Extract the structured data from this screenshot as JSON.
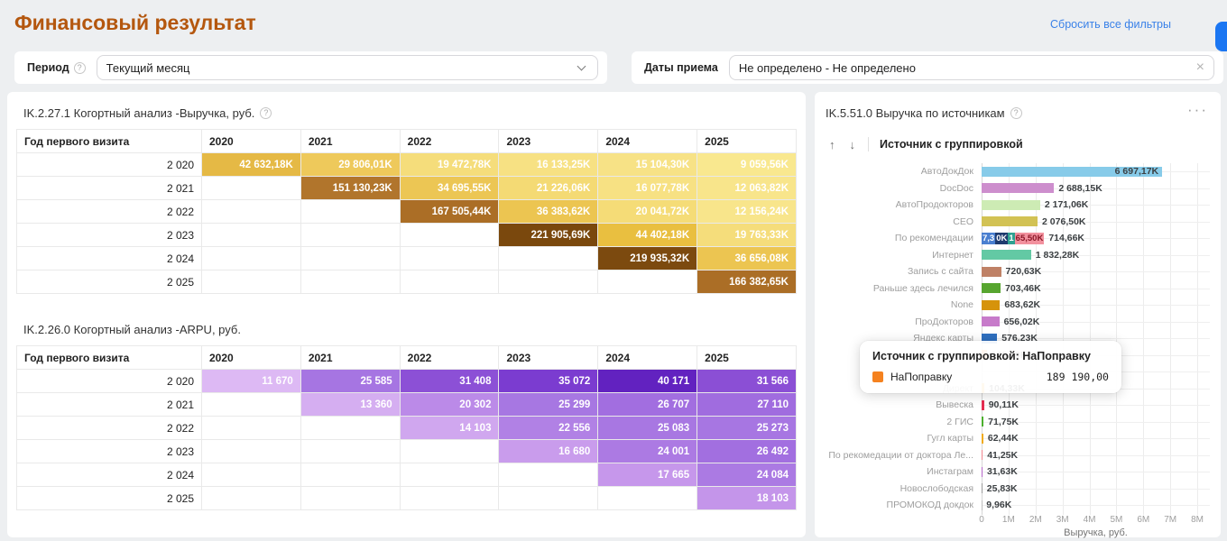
{
  "page": {
    "title": "Финансовый результат",
    "reset_filters": "Сбросить все фильтры"
  },
  "icons": {
    "help": "?",
    "clear": "×",
    "sort_asc": "↑",
    "sort_desc": "↓",
    "menu": "···"
  },
  "filters": {
    "period": {
      "label": "Период",
      "value": "Текущий месяц"
    },
    "dates": {
      "label": "Даты приема",
      "value": "Не определено - Не определено"
    }
  },
  "revenue_cohort": {
    "title": "IK.2.27.1 Когортный анализ -Выручка, руб.",
    "columns": [
      "Год первого визита",
      "2020",
      "2021",
      "2022",
      "2023",
      "2024",
      "2025"
    ],
    "rows": [
      {
        "label": "2 020",
        "cells": [
          {
            "v": "42 632,18K",
            "bg": "#e5b945"
          },
          {
            "v": "29 806,01K",
            "bg": "#eec95b"
          },
          {
            "v": "19 472,78K",
            "bg": "#f5dd7b"
          },
          {
            "v": "16 133,25K",
            "bg": "#f7e183"
          },
          {
            "v": "15 104,30K",
            "bg": "#f7e286"
          },
          {
            "v": "9 059,56K",
            "bg": "#f9e88f"
          }
        ]
      },
      {
        "label": "2 021",
        "cells": [
          null,
          {
            "v": "151 130,23K",
            "bg": "#b1752c"
          },
          {
            "v": "34 695,55K",
            "bg": "#ecc654"
          },
          {
            "v": "21 226,06K",
            "bg": "#f4da74"
          },
          {
            "v": "16 077,78K",
            "bg": "#f7e183"
          },
          {
            "v": "12 063,82K",
            "bg": "#f8e58b"
          }
        ]
      },
      {
        "label": "2 022",
        "cells": [
          null,
          null,
          {
            "v": "167 505,44K",
            "bg": "#ab6e26"
          },
          {
            "v": "36 383,62K",
            "bg": "#ecc551"
          },
          {
            "v": "20 041,72K",
            "bg": "#f5dc77"
          },
          {
            "v": "12 156,24K",
            "bg": "#f8e58b"
          }
        ]
      },
      {
        "label": "2 023",
        "cells": [
          null,
          null,
          null,
          {
            "v": "221 905,69K",
            "bg": "#7a480d"
          },
          {
            "v": "44 402,18K",
            "bg": "#e9bf40"
          },
          {
            "v": "19 763,33K",
            "bg": "#f5dd7b"
          }
        ]
      },
      {
        "label": "2 024",
        "cells": [
          null,
          null,
          null,
          null,
          {
            "v": "219 935,32K",
            "bg": "#7c4a0f"
          },
          {
            "v": "36 656,08K",
            "bg": "#ecc551"
          }
        ]
      },
      {
        "label": "2 025",
        "cells": [
          null,
          null,
          null,
          null,
          null,
          {
            "v": "166 382,65K",
            "bg": "#ab6e26"
          }
        ]
      }
    ]
  },
  "arpu_cohort": {
    "title": "IK.2.26.0 Когортный анализ -ARPU, руб.",
    "columns": [
      "Год первого визита",
      "2020",
      "2021",
      "2022",
      "2023",
      "2024",
      "2025"
    ],
    "rows": [
      {
        "label": "2 020",
        "cells": [
          {
            "v": "11 670",
            "bg": "#ddb9f4"
          },
          {
            "v": "25 585",
            "bg": "#a675e2"
          },
          {
            "v": "31 408",
            "bg": "#8c50d6"
          },
          {
            "v": "35 072",
            "bg": "#7b3cd0"
          },
          {
            "v": "40 171",
            "bg": "#6222c0"
          },
          {
            "v": "31 566",
            "bg": "#8b4fd5"
          }
        ]
      },
      {
        "label": "2 021",
        "cells": [
          null,
          {
            "v": "13 360",
            "bg": "#d5aef1"
          },
          {
            "v": "20 302",
            "bg": "#bb8ae8"
          },
          {
            "v": "25 299",
            "bg": "#a777e2"
          },
          {
            "v": "26 707",
            "bg": "#a26ee0"
          },
          {
            "v": "27 110",
            "bg": "#a06cdf"
          }
        ]
      },
      {
        "label": "2 022",
        "cells": [
          null,
          null,
          {
            "v": "14 103",
            "bg": "#d0a7ef"
          },
          {
            "v": "22 556",
            "bg": "#b181e5"
          },
          {
            "v": "25 083",
            "bg": "#a877e2"
          },
          {
            "v": "25 273",
            "bg": "#a776e2"
          }
        ]
      },
      {
        "label": "2 023",
        "cells": [
          null,
          null,
          null,
          {
            "v": "16 680",
            "bg": "#c99cec"
          },
          {
            "v": "24 001",
            "bg": "#ac7ae3"
          },
          {
            "v": "26 492",
            "bg": "#a26fe0"
          }
        ]
      },
      {
        "label": "2 024",
        "cells": [
          null,
          null,
          null,
          null,
          {
            "v": "17 665",
            "bg": "#c697eb"
          },
          {
            "v": "24 084",
            "bg": "#ab7ae3"
          }
        ]
      },
      {
        "label": "2 025",
        "cells": [
          null,
          null,
          null,
          null,
          null,
          {
            "v": "18 103",
            "bg": "#c495ea"
          }
        ]
      }
    ]
  },
  "sources_chart": {
    "title": "IK.5.51.0 Выручка по источникам",
    "group_label": "Источник с группировкой",
    "xlabel": "Выручка, руб.",
    "xmax_thousands": 8000,
    "ticks": [
      {
        "v": 0,
        "t": "0"
      },
      {
        "v": 1000,
        "t": "1M"
      },
      {
        "v": 2000,
        "t": "2M"
      },
      {
        "v": 3000,
        "t": "3M"
      },
      {
        "v": 4000,
        "t": "4M"
      },
      {
        "v": 5000,
        "t": "5M"
      },
      {
        "v": 6000,
        "t": "6M"
      },
      {
        "v": 7000,
        "t": "7M"
      },
      {
        "v": 8000,
        "t": "8M"
      }
    ],
    "bars": [
      {
        "label": "АвтоДокДок",
        "value": 6697.17,
        "display": "6 697,17K",
        "color": "#87cbe9",
        "inside": true
      },
      {
        "label": "DocDoc",
        "value": 2688.15,
        "display": "2 688,15K",
        "color": "#cd8ecd"
      },
      {
        "label": "АвтоПродокторов",
        "value": 2171.06,
        "display": "2 171,06K",
        "color": "#cdebb4"
      },
      {
        "label": "CEO",
        "value": 2076.5,
        "display": "2 076,50K",
        "color": "#d2c254"
      },
      {
        "label": "По рекомендации",
        "value": 714.66,
        "display": "714,66K",
        "overlap": [
          {
            "t": "7,3",
            "bg": "#4a7fd0",
            "fg": "#ffffff"
          },
          {
            "t": "0K",
            "bg": "#1f3b6e",
            "fg": "#ffffff"
          },
          {
            "t": "1",
            "bg": "#2fa191",
            "fg": "#ffffff"
          },
          {
            "t": "65,50K",
            "bg": "#f2919e",
            "fg": "#8a1626"
          }
        ]
      },
      {
        "label": "Интернет",
        "value": 1832.28,
        "display": "1 832,28K",
        "color": "#63c9a4"
      },
      {
        "label": "Запись с сайта",
        "value": 720.63,
        "display": "720,63K",
        "color": "#bf8166"
      },
      {
        "label": "Раньше здесь лечился",
        "value": 703.46,
        "display": "703,46K",
        "color": "#57a52f"
      },
      {
        "label": "None",
        "value": 683.62,
        "display": "683,62K",
        "color": "#d6930b"
      },
      {
        "label": "ПроДокторов",
        "value": 656.02,
        "display": "656,02K",
        "color": "#c77bca"
      },
      {
        "label": "Яндекс карты",
        "value": 576.23,
        "display": "576,23K",
        "color": "#2f70bf"
      },
      {
        "label": "НаПоправку",
        "value": 189.19,
        "display": "189,19K",
        "color": "#f5821f"
      },
      {
        "label": "",
        "value": 0,
        "display": "",
        "color": "transparent",
        "spacer": true
      },
      {
        "label": "Директ",
        "value": 104.33,
        "display": "104,33K",
        "color": "#f5a623"
      },
      {
        "label": "Вывеска",
        "value": 90.11,
        "display": "90,11K",
        "color": "#e62e52"
      },
      {
        "label": "2 ГИС",
        "value": 71.75,
        "display": "71,75K",
        "color": "#4cb02e"
      },
      {
        "label": "Гугл карты",
        "value": 62.44,
        "display": "62,44K",
        "color": "#f0ab1b"
      },
      {
        "label": "По рекомедации от доктора Ле...",
        "value": 41.25,
        "display": "41,25K",
        "color": "#f2868f"
      },
      {
        "label": "Инстаграм",
        "value": 31.63,
        "display": "31,63K",
        "color": "#b666c9"
      },
      {
        "label": "Новослободская",
        "value": 25.83,
        "display": "25,83K",
        "color": "#9a9a9a"
      },
      {
        "label": "ПРОМОКОД докдок",
        "value": 9.96,
        "display": "9,96K",
        "color": "#bdbdbd"
      }
    ]
  },
  "tooltip": {
    "title": "Источник с группировкой: НаПоправку",
    "series": "НаПоправку",
    "swatch": "#f5821f",
    "value": "189 190,00"
  }
}
